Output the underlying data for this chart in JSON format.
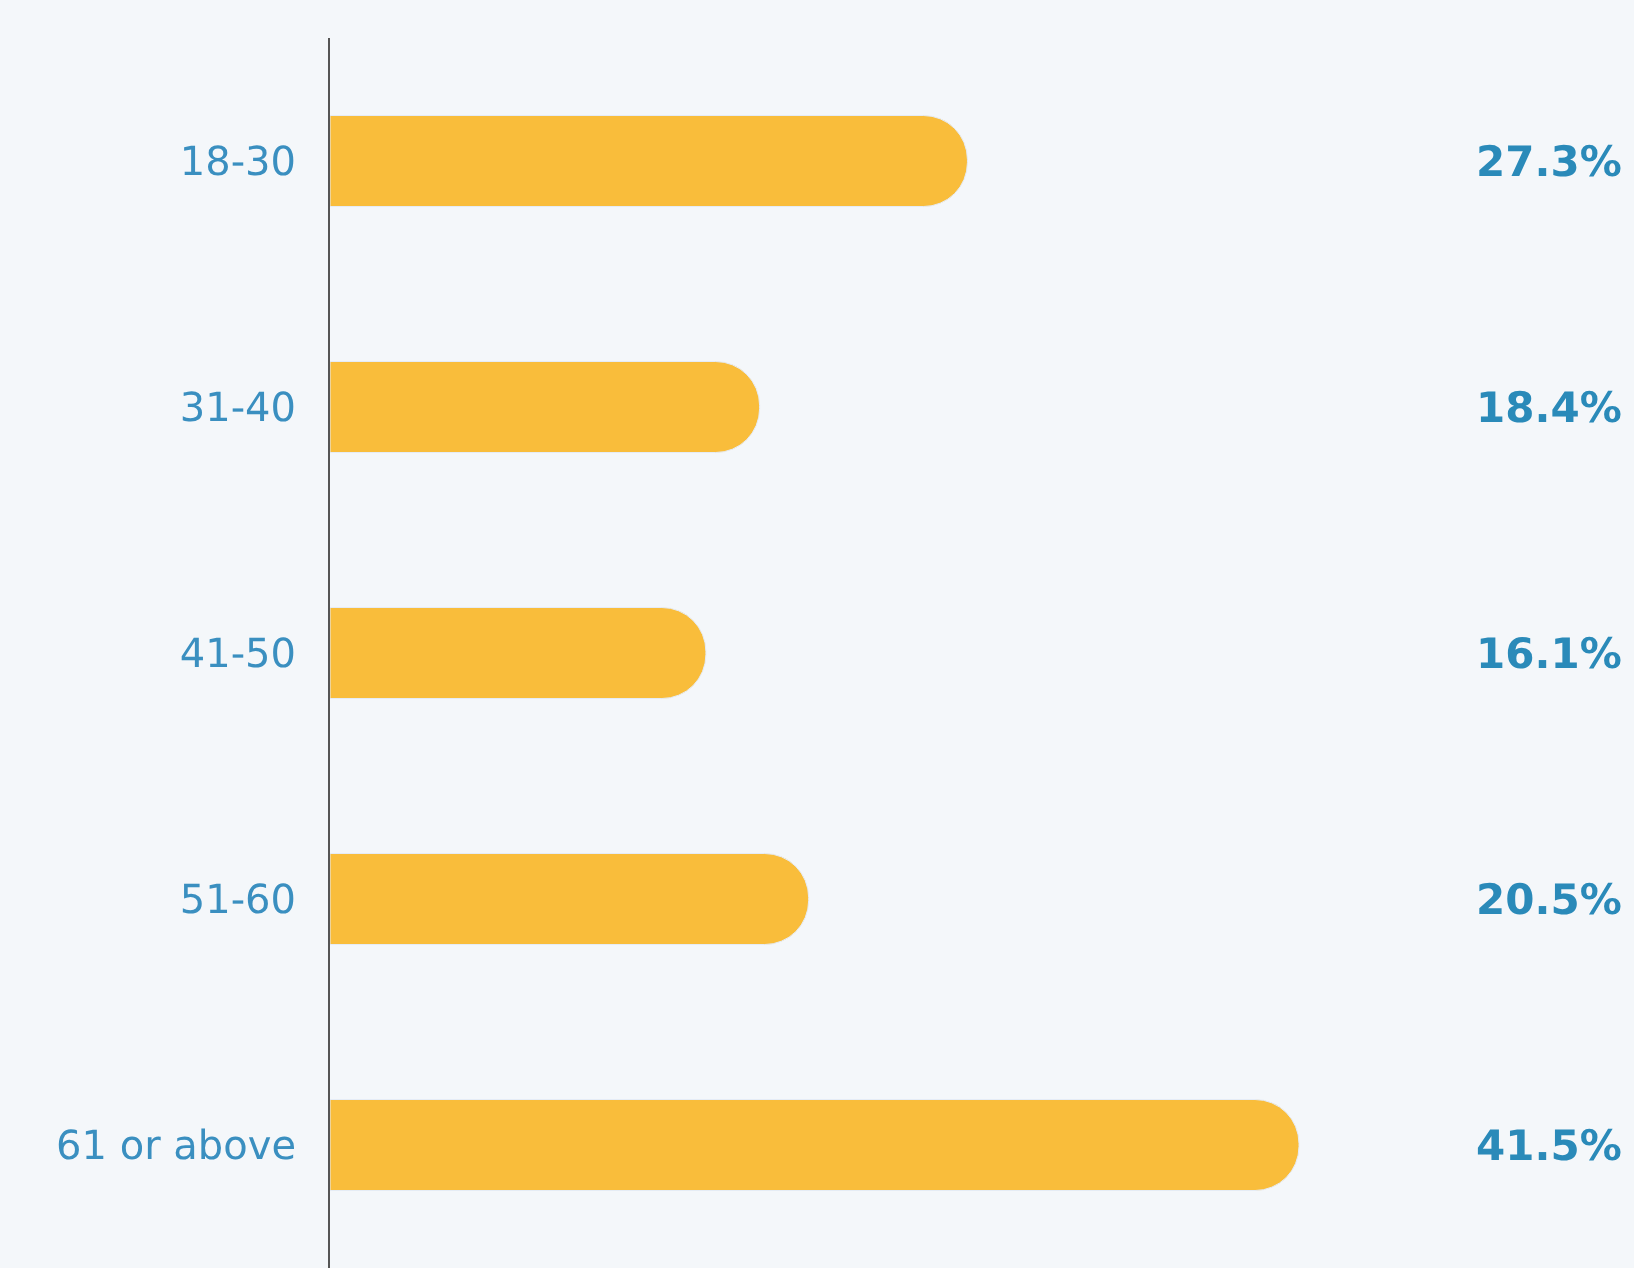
{
  "chart_data": {
    "type": "bar",
    "orientation": "horizontal",
    "categories": [
      "18-30",
      "31-40",
      "41-50",
      "51-60",
      "61 or above"
    ],
    "values": [
      27.3,
      18.4,
      16.1,
      20.5,
      41.5
    ],
    "color": "#f9bd3b",
    "data_labels": true,
    "value_labels": [
      "27.3%",
      "18.4%",
      "16.1%",
      "20.5%",
      "41.5%"
    ],
    "grid": false,
    "legend": false
  }
}
